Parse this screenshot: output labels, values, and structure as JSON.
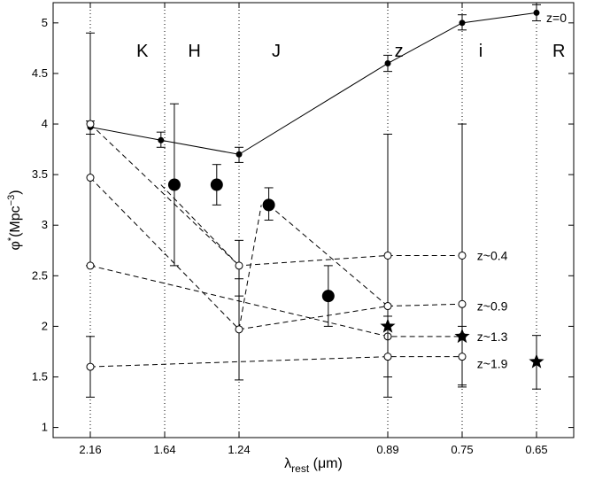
{
  "chart_data": {
    "type": "scatter",
    "title": "",
    "xlabel": {
      "main": "λ",
      "sub": "rest",
      "unit": "(μm)"
    },
    "ylabel": {
      "main": "φ",
      "sup1": "*",
      "mid": "(Mpc",
      "sup2": "−3",
      "end": ")"
    },
    "ylim": [
      0.9,
      5.2
    ],
    "xlim": [
      0.5,
      7.5
    ],
    "grid": false,
    "yticks": [
      1,
      1.5,
      2,
      2.5,
      3,
      3.5,
      4,
      4.5,
      5
    ],
    "ytick_labels": [
      "1",
      "1.5",
      "2",
      "2.5",
      "3",
      "3.5",
      "4",
      "4.5",
      "5"
    ],
    "bands": [
      {
        "label": "K",
        "x": 1.7
      },
      {
        "label": "H",
        "x": 2.4
      },
      {
        "label": "J",
        "x": 3.5
      },
      {
        "label": "z",
        "x": 5.15
      },
      {
        "label": "i",
        "x": 6.25
      },
      {
        "label": "R",
        "x": 7.3
      }
    ],
    "xticks": [
      {
        "pos": 1,
        "label": "2.16"
      },
      {
        "pos": 2,
        "label": "1.64"
      },
      {
        "pos": 3,
        "label": "1.24"
      },
      {
        "pos": 5,
        "label": "0.89"
      },
      {
        "pos": 6,
        "label": "0.75"
      },
      {
        "pos": 7,
        "label": "0.65"
      }
    ],
    "series": [
      {
        "name": "z=0",
        "marker": "filled-small",
        "line": "solid",
        "points": [
          {
            "x": 1,
            "y": 3.97,
            "lo": 3.9,
            "hi": 4.03
          },
          {
            "x": 1.95,
            "y": 3.84,
            "lo": 3.77,
            "hi": 3.92
          },
          {
            "x": 3,
            "y": 3.7,
            "lo": 3.62,
            "hi": 3.77
          },
          {
            "x": 5,
            "y": 4.6,
            "lo": 4.52,
            "hi": 4.68
          },
          {
            "x": 6,
            "y": 5.0,
            "lo": 4.93,
            "hi": 5.08
          },
          {
            "x": 7,
            "y": 5.1,
            "lo": 5.02,
            "hi": 5.18
          }
        ]
      },
      {
        "name": "z~0.4",
        "marker": "open",
        "line": "dashed",
        "points": [
          {
            "x": 1,
            "y": 4.0,
            "lo": 2.6,
            "hi": 4.9
          },
          {
            "x": 3,
            "y": 2.6,
            "lo": 2.3,
            "hi": 2.85
          },
          {
            "x": 5,
            "y": 2.7,
            "lo": 1.5,
            "hi": 3.9
          },
          {
            "x": 6,
            "y": 2.7,
            "lo": 1.4,
            "hi": 4.0
          }
        ]
      },
      {
        "name": "z~0.9",
        "marker": "open",
        "line": "dashed",
        "points": [
          {
            "x": 1,
            "y": 3.47
          },
          {
            "x": 3,
            "y": 1.97,
            "lo": 1.47,
            "hi": 2.47
          },
          {
            "x": 5,
            "y": 2.2
          },
          {
            "x": 6,
            "y": 2.22
          }
        ]
      },
      {
        "name": "z~1.3",
        "marker": "open",
        "line": "dashed",
        "points": [
          {
            "x": 1,
            "y": 2.6
          },
          {
            "x": 5,
            "y": 1.9
          },
          {
            "x": 6,
            "y": 1.9
          }
        ]
      },
      {
        "name": "z~1.9",
        "marker": "open",
        "line": "dashed",
        "points": [
          {
            "x": 1,
            "y": 1.6,
            "lo": 1.3,
            "hi": 1.9
          },
          {
            "x": 5,
            "y": 1.7,
            "lo": 1.3,
            "hi": 2.1
          },
          {
            "x": 6,
            "y": 1.7,
            "lo": 1.42,
            "hi": 2.0
          }
        ]
      }
    ],
    "big_points": [
      {
        "x": 2.13,
        "y": 3.4,
        "lo": 2.6,
        "hi": 4.2
      },
      {
        "x": 2.7,
        "y": 3.4,
        "lo": 3.2,
        "hi": 3.6
      },
      {
        "x": 3.4,
        "y": 3.2,
        "lo": 3.05,
        "hi": 3.37
      },
      {
        "x": 4.2,
        "y": 2.3,
        "lo": 2.0,
        "hi": 2.6
      }
    ],
    "extra_dashed": [
      {
        "from": {
          "x": 1.95,
          "y": 3.4
        },
        "to": {
          "x": 3,
          "y": 2.6
        }
      },
      {
        "from": {
          "x": 3,
          "y": 1.97
        },
        "to": {
          "x": 3.3,
          "y": 3.2
        }
      },
      {
        "from": {
          "x": 3.4,
          "y": 3.2
        },
        "to": {
          "x": 5,
          "y": 2.2
        }
      }
    ],
    "stars": [
      {
        "x": 5,
        "y": 2.0
      },
      {
        "x": 6,
        "y": 1.9
      },
      {
        "x": 7,
        "y": 1.65,
        "lo": 1.38,
        "hi": 1.91
      }
    ],
    "series_labels": [
      {
        "text": "z=0",
        "x": 7.5,
        "y": 5.05
      },
      {
        "text": "z~0.4",
        "x": 6.2,
        "y": 2.7
      },
      {
        "text": "z~0.9",
        "x": 6.2,
        "y": 2.2
      },
      {
        "text": "z~1.3",
        "x": 6.2,
        "y": 1.9
      },
      {
        "text": "z~1.9",
        "x": 6.2,
        "y": 1.63
      }
    ]
  }
}
